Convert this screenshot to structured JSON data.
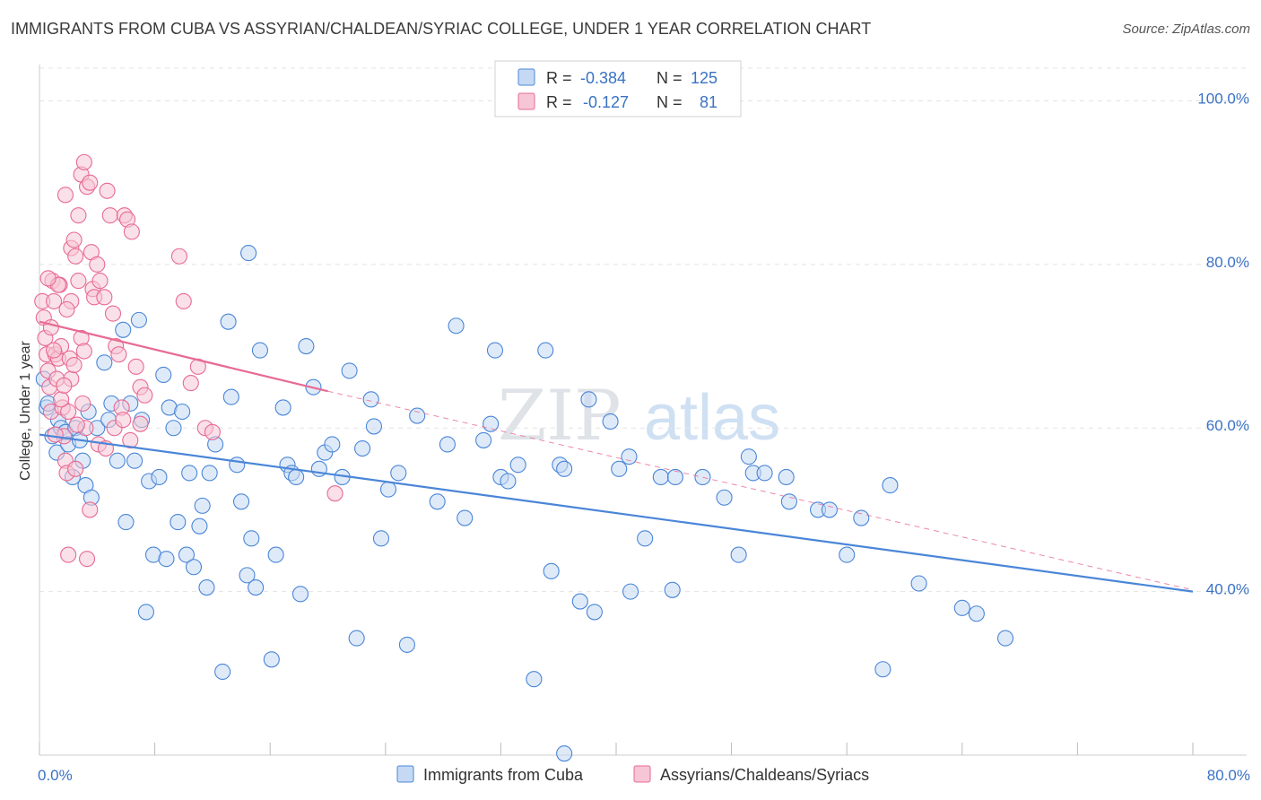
{
  "title": "IMMIGRANTS FROM CUBA VS ASSYRIAN/CHALDEAN/SYRIAC COLLEGE, UNDER 1 YEAR CORRELATION CHART",
  "source": "Source: ZipAtlas.com",
  "watermark": {
    "zip": "ZIP",
    "atlas": "atlas"
  },
  "colors": {
    "blue": "#4a86d8",
    "blue_fill": "#c5d9f4",
    "pink": "#e86a93",
    "pink_fill": "#f6c6d6",
    "value_text": "#3a72c4",
    "grid": "#e3e3e3"
  },
  "legend_stats": [
    {
      "r_label": "R =",
      "r_value": "-0.384",
      "n_label": "N =",
      "n_value": "125"
    },
    {
      "r_label": "R =",
      "r_value": "-0.127",
      "n_label": "N =",
      "n_value": "81"
    }
  ],
  "chart_data": {
    "type": "scatter",
    "title": "IMMIGRANTS FROM CUBA VS ASSYRIAN/CHALDEAN/SYRIAC COLLEGE, UNDER 1 YEAR CORRELATION CHART",
    "xlabel": "",
    "ylabel": "College, Under 1 year",
    "xlim": [
      0,
      80
    ],
    "ylim": [
      20,
      104
    ],
    "x_tick_labels": [
      "0.0%",
      "80.0%"
    ],
    "y_ticks": [
      40,
      60,
      80,
      100
    ],
    "y_tick_labels": [
      "40.0%",
      "60.0%",
      "80.0%",
      "100.0%"
    ],
    "grid": true,
    "legend_position": "bottom",
    "series": [
      {
        "name": "Immigrants from Cuba",
        "color": "#4a86d8",
        "trend": {
          "x": [
            0,
            80
          ],
          "y": [
            59.2,
            40.0
          ]
        },
        "points": [
          [
            0.3,
            66
          ],
          [
            0.5,
            62.5
          ],
          [
            0.6,
            63
          ],
          [
            0.9,
            59
          ],
          [
            1.2,
            57
          ],
          [
            1.3,
            61
          ],
          [
            1.5,
            60
          ],
          [
            1.8,
            59.5
          ],
          [
            2.0,
            58
          ],
          [
            2.3,
            54
          ],
          [
            2.5,
            60
          ],
          [
            2.8,
            58.5
          ],
          [
            3.0,
            56
          ],
          [
            3.2,
            53
          ],
          [
            3.4,
            62
          ],
          [
            3.6,
            51.5
          ],
          [
            4.0,
            60
          ],
          [
            4.5,
            68
          ],
          [
            4.8,
            61
          ],
          [
            5.0,
            63
          ],
          [
            5.4,
            56
          ],
          [
            5.8,
            72
          ],
          [
            6.0,
            48.5
          ],
          [
            6.3,
            63
          ],
          [
            6.6,
            56
          ],
          [
            6.9,
            73.2
          ],
          [
            7.1,
            61
          ],
          [
            7.4,
            37.5
          ],
          [
            7.6,
            53.5
          ],
          [
            7.9,
            44.5
          ],
          [
            8.3,
            54
          ],
          [
            8.6,
            66.5
          ],
          [
            8.8,
            44
          ],
          [
            9.0,
            62.5
          ],
          [
            9.3,
            60
          ],
          [
            9.6,
            48.5
          ],
          [
            9.9,
            62
          ],
          [
            10.2,
            44.5
          ],
          [
            10.4,
            54.5
          ],
          [
            10.7,
            43
          ],
          [
            11.1,
            48
          ],
          [
            11.3,
            50.5
          ],
          [
            11.6,
            40.5
          ],
          [
            11.8,
            54.5
          ],
          [
            14.5,
            81.4
          ],
          [
            12.2,
            58
          ],
          [
            12.7,
            30.2
          ],
          [
            13.1,
            73
          ],
          [
            13.3,
            63.8
          ],
          [
            13.7,
            55.5
          ],
          [
            14.0,
            51
          ],
          [
            14.4,
            42
          ],
          [
            14.7,
            46.5
          ],
          [
            15.0,
            40.5
          ],
          [
            15.3,
            69.5
          ],
          [
            16.1,
            31.7
          ],
          [
            16.4,
            44.5
          ],
          [
            16.9,
            62.5
          ],
          [
            17.2,
            55.5
          ],
          [
            17.5,
            54.5
          ],
          [
            17.8,
            54
          ],
          [
            18.1,
            39.7
          ],
          [
            18.5,
            70
          ],
          [
            19.0,
            65
          ],
          [
            19.4,
            55
          ],
          [
            19.8,
            57
          ],
          [
            20.3,
            58
          ],
          [
            21.0,
            54
          ],
          [
            21.5,
            67
          ],
          [
            22.0,
            34.3
          ],
          [
            22.4,
            57.5
          ],
          [
            23.0,
            63.5
          ],
          [
            23.2,
            60.2
          ],
          [
            23.7,
            46.5
          ],
          [
            24.2,
            52.5
          ],
          [
            24.9,
            54.5
          ],
          [
            25.5,
            33.5
          ],
          [
            26.2,
            61.5
          ],
          [
            27.6,
            51
          ],
          [
            28.3,
            58
          ],
          [
            28.9,
            72.5
          ],
          [
            29.5,
            49
          ],
          [
            30.8,
            58.5
          ],
          [
            31.3,
            60.5
          ],
          [
            31.6,
            69.5
          ],
          [
            32.0,
            54
          ],
          [
            32.5,
            53.5
          ],
          [
            33.2,
            55.5
          ],
          [
            34.3,
            29.3
          ],
          [
            35.1,
            69.5
          ],
          [
            35.5,
            42.5
          ],
          [
            36.1,
            55.5
          ],
          [
            36.4,
            55
          ],
          [
            37.5,
            38.8
          ],
          [
            38.1,
            63.5
          ],
          [
            38.5,
            37.5
          ],
          [
            39.6,
            60.8
          ],
          [
            40.2,
            55
          ],
          [
            40.9,
            56.5
          ],
          [
            41.0,
            40
          ],
          [
            42.0,
            46.5
          ],
          [
            43.1,
            54
          ],
          [
            44.1,
            54
          ],
          [
            43.9,
            40.2
          ],
          [
            46.0,
            54
          ],
          [
            47.5,
            51.5
          ],
          [
            48.5,
            44.5
          ],
          [
            49.2,
            56.5
          ],
          [
            49.5,
            54.5
          ],
          [
            50.3,
            54.5
          ],
          [
            51.8,
            54
          ],
          [
            52.0,
            51
          ],
          [
            54.0,
            50
          ],
          [
            54.8,
            50
          ],
          [
            56.0,
            44.5
          ],
          [
            57.0,
            49
          ],
          [
            58.5,
            30.5
          ],
          [
            59.0,
            53
          ],
          [
            61.0,
            41
          ],
          [
            64.0,
            38
          ],
          [
            65.0,
            37.3
          ],
          [
            67.0,
            34.3
          ],
          [
            36.4,
            20.2
          ]
        ]
      },
      {
        "name": "Assyrians/Chaldeans/Syriacs",
        "color": "#e86a93",
        "trend": {
          "x": [
            0,
            20
          ],
          "y": [
            73.0,
            64.5
          ]
        },
        "trend_extended": {
          "x": [
            20,
            80
          ],
          "y": [
            64.5,
            40.2
          ]
        },
        "points": [
          [
            0.2,
            75.5
          ],
          [
            0.3,
            73.5
          ],
          [
            0.4,
            71
          ],
          [
            0.5,
            69
          ],
          [
            0.6,
            67
          ],
          [
            0.7,
            65
          ],
          [
            0.8,
            62
          ],
          [
            0.9,
            78
          ],
          [
            1.0,
            75.5
          ],
          [
            1.1,
            69
          ],
          [
            1.2,
            66
          ],
          [
            1.3,
            68.5
          ],
          [
            1.4,
            77.5
          ],
          [
            1.5,
            70
          ],
          [
            1.6,
            62.5
          ],
          [
            1.7,
            59
          ],
          [
            1.8,
            56
          ],
          [
            1.9,
            54.5
          ],
          [
            2.0,
            62
          ],
          [
            2.1,
            68.5
          ],
          [
            2.2,
            75.5
          ],
          [
            1.8,
            88.5
          ],
          [
            2.2,
            82
          ],
          [
            2.4,
            83
          ],
          [
            2.5,
            81
          ],
          [
            2.7,
            78
          ],
          [
            2.9,
            71
          ],
          [
            3.0,
            63
          ],
          [
            3.2,
            60
          ],
          [
            2.7,
            86
          ],
          [
            2.9,
            91
          ],
          [
            3.1,
            92.5
          ],
          [
            3.3,
            89.5
          ],
          [
            3.5,
            90
          ],
          [
            3.6,
            81.5
          ],
          [
            3.7,
            77
          ],
          [
            3.8,
            76
          ],
          [
            4.0,
            80
          ],
          [
            4.2,
            78
          ],
          [
            4.5,
            76
          ],
          [
            4.7,
            89
          ],
          [
            4.9,
            86
          ],
          [
            5.1,
            74
          ],
          [
            5.3,
            70
          ],
          [
            5.5,
            69
          ],
          [
            5.7,
            62.5
          ],
          [
            5.9,
            86
          ],
          [
            6.1,
            85.5
          ],
          [
            6.4,
            84
          ],
          [
            6.7,
            67.5
          ],
          [
            7.0,
            65
          ],
          [
            7.3,
            64
          ],
          [
            9.7,
            81
          ],
          [
            10.0,
            75.5
          ],
          [
            10.5,
            65.5
          ],
          [
            11.0,
            67.5
          ],
          [
            11.5,
            60
          ],
          [
            12.0,
            59.5
          ],
          [
            3.5,
            50
          ],
          [
            3.3,
            44
          ],
          [
            2.0,
            44.5
          ],
          [
            2.5,
            55
          ],
          [
            20.5,
            52
          ],
          [
            1.0,
            69.5
          ],
          [
            1.5,
            63.5
          ],
          [
            2.2,
            66
          ],
          [
            4.1,
            58
          ],
          [
            4.6,
            57.5
          ],
          [
            5.2,
            60
          ],
          [
            5.8,
            61
          ],
          [
            6.3,
            58.5
          ],
          [
            7.0,
            60.5
          ],
          [
            1.3,
            77.5
          ],
          [
            1.7,
            65.2
          ],
          [
            2.4,
            67.7
          ],
          [
            3.1,
            69.4
          ],
          [
            0.8,
            72.3
          ],
          [
            1.9,
            74.5
          ],
          [
            2.6,
            60.4
          ],
          [
            1.1,
            59.2
          ],
          [
            0.6,
            78.3
          ]
        ]
      }
    ]
  }
}
